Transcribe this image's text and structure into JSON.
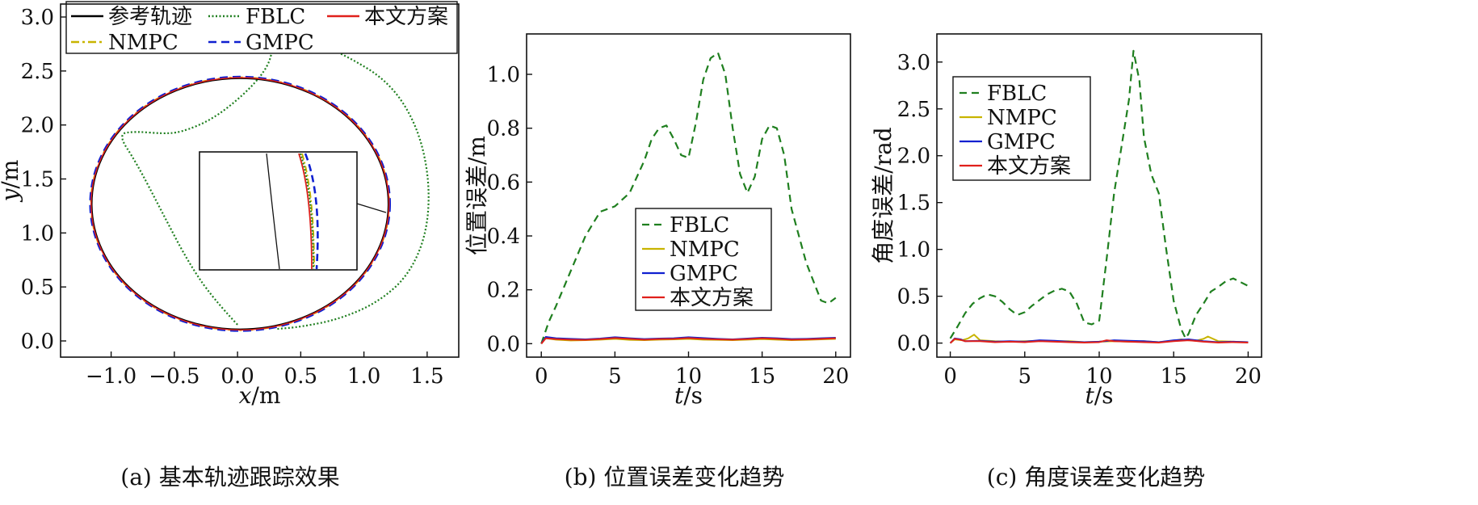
{
  "colors": {
    "reference": "#000000",
    "fblc": "#1f7f1f",
    "proposed": "#e0201b",
    "nmpc": "#c8b400",
    "gmpc": "#1020d0"
  },
  "chart_data": [
    {
      "id": "a",
      "type": "line",
      "caption": "(a) 基本轨迹跟踪效果",
      "xlabel_var": "x",
      "xlabel_unit": "/m",
      "ylabel_var": "y",
      "ylabel_unit": "/m",
      "xlim": [
        -1.4,
        1.75
      ],
      "ylim": [
        -0.15,
        3.12
      ],
      "xticks": [
        -1.0,
        -0.5,
        0.0,
        0.5,
        1.0,
        1.5
      ],
      "xtick_labels": [
        "−1.0",
        "−0.5",
        "0.0",
        "0.5",
        "1.0",
        "1.5"
      ],
      "yticks": [
        0.0,
        0.5,
        1.0,
        1.5,
        2.0,
        2.5,
        3.0
      ],
      "ytick_labels": [
        "0.0",
        "0.5",
        "1.0",
        "1.5",
        "2.0",
        "2.5",
        "3.0"
      ],
      "legend": [
        "参考轨迹",
        "FBLC",
        "本文方案",
        "NMPC",
        "GMPC"
      ],
      "legend_position": "top",
      "ellipse": {
        "cx": 0.02,
        "cy": 1.27,
        "rx": 1.18,
        "ry": 1.17
      },
      "fblc_path": [
        [
          0.0,
          0.15
        ],
        [
          -0.2,
          0.4
        ],
        [
          -0.4,
          0.75
        ],
        [
          -0.6,
          1.2
        ],
        [
          -0.8,
          1.65
        ],
        [
          -0.95,
          1.92
        ],
        [
          -0.8,
          1.94
        ],
        [
          -0.6,
          1.92
        ],
        [
          -0.45,
          1.93
        ],
        [
          -0.2,
          2.05
        ],
        [
          0.05,
          2.28
        ],
        [
          0.22,
          2.5
        ],
        [
          0.28,
          2.68
        ],
        [
          0.25,
          2.82
        ],
        [
          0.23,
          2.88
        ],
        [
          0.5,
          2.82
        ],
        [
          0.85,
          2.65
        ],
        [
          1.2,
          2.4
        ],
        [
          1.42,
          2.0
        ],
        [
          1.52,
          1.5
        ],
        [
          1.5,
          1.0
        ],
        [
          1.35,
          0.6
        ],
        [
          1.1,
          0.35
        ],
        [
          0.8,
          0.2
        ],
        [
          0.5,
          0.13
        ],
        [
          0.3,
          0.11
        ]
      ],
      "inset": "zoom box"
    },
    {
      "id": "b",
      "type": "line",
      "caption": "(b) 位置误差变化趋势",
      "xlabel_var": "t",
      "xlabel_unit": "/s",
      "ylabel": "位置误差/m",
      "xlim": [
        -1.0,
        21.0
      ],
      "ylim": [
        -0.05,
        1.15
      ],
      "xticks": [
        0,
        5,
        10,
        15,
        20
      ],
      "xtick_labels": [
        "0",
        "5",
        "10",
        "15",
        "20"
      ],
      "yticks": [
        0.0,
        0.2,
        0.4,
        0.6,
        0.8,
        1.0
      ],
      "ytick_labels": [
        "0.0",
        "0.2",
        "0.4",
        "0.6",
        "0.8",
        "1.0"
      ],
      "legend": [
        "FBLC",
        "NMPC",
        "GMPC",
        "本文方案"
      ],
      "legend_position": "center-right",
      "series": [
        {
          "name": "FBLC",
          "x": [
            0,
            0.5,
            1,
            2,
            3,
            4,
            5,
            6,
            7,
            7.5,
            8,
            8.5,
            9,
            9.5,
            10,
            10.5,
            11,
            11.5,
            12,
            12.5,
            13,
            13.5,
            14,
            14.5,
            15,
            15.5,
            16,
            16.5,
            17,
            18,
            19,
            19.5,
            20
          ],
          "values": [
            0.0,
            0.08,
            0.14,
            0.27,
            0.4,
            0.49,
            0.51,
            0.56,
            0.68,
            0.76,
            0.8,
            0.81,
            0.76,
            0.7,
            0.69,
            0.82,
            0.98,
            1.06,
            1.08,
            1.0,
            0.8,
            0.63,
            0.56,
            0.62,
            0.76,
            0.81,
            0.8,
            0.7,
            0.5,
            0.3,
            0.16,
            0.15,
            0.17
          ]
        },
        {
          "name": "NMPC",
          "x": [
            0,
            0.3,
            1,
            2,
            3,
            4,
            5,
            6,
            7,
            8,
            9,
            10,
            11,
            12,
            13,
            14,
            15,
            16,
            17,
            18,
            19,
            20
          ],
          "values": [
            0.0,
            0.02,
            0.015,
            0.012,
            0.013,
            0.015,
            0.018,
            0.014,
            0.013,
            0.015,
            0.016,
            0.018,
            0.015,
            0.014,
            0.013,
            0.015,
            0.017,
            0.015,
            0.013,
            0.014,
            0.016,
            0.018
          ]
        },
        {
          "name": "GMPC",
          "x": [
            0,
            0.3,
            1,
            2,
            3,
            4,
            5,
            6,
            7,
            8,
            9,
            10,
            11,
            12,
            13,
            14,
            15,
            16,
            17,
            18,
            19,
            20
          ],
          "values": [
            0.0,
            0.025,
            0.02,
            0.018,
            0.016,
            0.019,
            0.024,
            0.02,
            0.017,
            0.019,
            0.02,
            0.024,
            0.021,
            0.018,
            0.016,
            0.019,
            0.022,
            0.02,
            0.017,
            0.018,
            0.02,
            0.022
          ]
        },
        {
          "name": "本文方案",
          "x": [
            0,
            0.3,
            1,
            2,
            3,
            4,
            5,
            6,
            7,
            8,
            9,
            10,
            11,
            12,
            13,
            14,
            15,
            16,
            17,
            18,
            19,
            20
          ],
          "values": [
            0.0,
            0.02,
            0.017,
            0.015,
            0.014,
            0.017,
            0.021,
            0.018,
            0.015,
            0.017,
            0.018,
            0.021,
            0.018,
            0.016,
            0.015,
            0.017,
            0.02,
            0.018,
            0.015,
            0.016,
            0.018,
            0.02
          ]
        }
      ]
    },
    {
      "id": "c",
      "type": "line",
      "caption": "(c) 角度误差变化趋势",
      "xlabel_var": "t",
      "xlabel_unit": "/s",
      "ylabel": "角度误差/rad",
      "xlim": [
        -0.9,
        20.9
      ],
      "ylim": [
        -0.15,
        3.3
      ],
      "xticks": [
        0,
        5,
        10,
        15,
        20
      ],
      "xtick_labels": [
        "0",
        "5",
        "10",
        "15",
        "20"
      ],
      "yticks": [
        0.0,
        0.5,
        1.0,
        1.5,
        2.0,
        2.5,
        3.0
      ],
      "ytick_labels": [
        "0.0",
        "0.5",
        "1.0",
        "1.5",
        "2.0",
        "2.5",
        "3.0"
      ],
      "legend": [
        "FBLC",
        "NMPC",
        "GMPC",
        "本文方案"
      ],
      "legend_position": "top-left",
      "series": [
        {
          "name": "FBLC",
          "x": [
            0,
            0.5,
            1,
            1.5,
            2,
            2.5,
            3,
            3.5,
            4,
            4.5,
            5,
            5.5,
            6,
            6.5,
            7,
            7.5,
            8,
            8.5,
            9,
            9.5,
            10,
            10.5,
            11,
            11.5,
            12,
            12.3,
            12.7,
            13,
            13.5,
            14,
            14.5,
            15,
            15.5,
            15.8,
            16,
            16.5,
            17,
            17.5,
            18,
            18.5,
            19,
            19.5,
            20
          ],
          "values": [
            0.05,
            0.18,
            0.32,
            0.42,
            0.48,
            0.52,
            0.5,
            0.44,
            0.36,
            0.3,
            0.33,
            0.4,
            0.46,
            0.52,
            0.56,
            0.58,
            0.55,
            0.42,
            0.22,
            0.2,
            0.24,
            0.9,
            1.6,
            2.1,
            2.6,
            3.12,
            2.8,
            2.2,
            1.8,
            1.6,
            1.0,
            0.45,
            0.15,
            0.05,
            0.1,
            0.3,
            0.42,
            0.55,
            0.6,
            0.66,
            0.69,
            0.65,
            0.61
          ]
        },
        {
          "name": "NMPC",
          "x": [
            0,
            0.3,
            0.8,
            1.2,
            1.6,
            2,
            3,
            4,
            5,
            6,
            7,
            8,
            9,
            10,
            11,
            12,
            13,
            14,
            15,
            15.5,
            16,
            16.5,
            17,
            17.3,
            18,
            19,
            20
          ],
          "values": [
            0.0,
            0.04,
            0.03,
            0.05,
            0.09,
            0.03,
            0.02,
            0.015,
            0.02,
            0.025,
            0.02,
            0.02,
            0.01,
            0.015,
            0.02,
            0.015,
            0.02,
            0.01,
            0.025,
            0.04,
            0.03,
            0.025,
            0.045,
            0.07,
            0.02,
            0.015,
            0.01
          ]
        },
        {
          "name": "GMPC",
          "x": [
            0,
            0.3,
            0.7,
            1,
            2,
            3,
            4,
            5,
            6,
            7,
            8,
            9,
            10,
            11,
            12,
            13,
            14,
            15,
            16,
            17,
            18,
            19,
            20
          ],
          "values": [
            0.0,
            0.05,
            0.04,
            0.02,
            0.025,
            0.015,
            0.02,
            0.015,
            0.03,
            0.025,
            0.015,
            0.01,
            0.015,
            0.03,
            0.025,
            0.02,
            0.01,
            0.03,
            0.04,
            0.02,
            0.01,
            0.015,
            0.01
          ]
        },
        {
          "name": "本文方案",
          "x": [
            0,
            0.3,
            0.7,
            1,
            2,
            3,
            4,
            5,
            6,
            7,
            8,
            9,
            10,
            10.5,
            11,
            12,
            13,
            14,
            15,
            16,
            17,
            18,
            19,
            20
          ],
          "values": [
            0.0,
            0.045,
            0.035,
            0.02,
            0.02,
            0.01,
            0.015,
            0.01,
            0.02,
            0.015,
            0.01,
            0.005,
            0.01,
            0.03,
            0.02,
            0.015,
            0.01,
            0.005,
            0.02,
            0.03,
            0.015,
            0.005,
            0.01,
            0.005
          ]
        }
      ]
    }
  ]
}
